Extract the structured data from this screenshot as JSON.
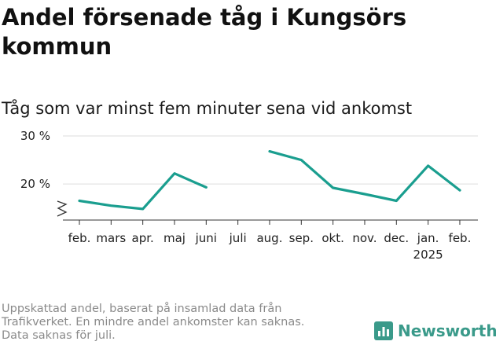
{
  "header": {
    "title": "Andel försenade tåg i Kungsörs kommun",
    "subtitle": "Tåg som var minst fem minuter sena vid ankomst"
  },
  "footer": {
    "note_line1": "Uppskattad andel, baserat på insamlad data från",
    "note_line2": "Trafikverket. En mindre andel ankomster kan saknas.",
    "note_line3": "Data saknas för juli.",
    "brand": "Newsworthy"
  },
  "colors": {
    "line": "#1a9e8f",
    "brand": "#3a9a8a",
    "grid": "#dddddd",
    "axis": "#333333"
  },
  "icons": {
    "axis_break": "zigzag-break-icon",
    "brand_logo": "bar-chart-logo-icon"
  },
  "chart_data": {
    "type": "line",
    "title": "Andel försenade tåg i Kungsörs kommun",
    "subtitle": "Tåg som var minst fem minuter sena vid ankomst",
    "categories": [
      "feb.",
      "mars",
      "apr.",
      "maj",
      "juni",
      "juli",
      "aug.",
      "sep.",
      "okt.",
      "nov.",
      "dec.",
      "jan.",
      "feb."
    ],
    "year_labels": [
      "",
      "",
      "",
      "",
      "",
      "",
      "",
      "",
      "",
      "",
      "",
      "2025",
      ""
    ],
    "series": [
      {
        "values": [
          16.5,
          15.5,
          14.8,
          22.2,
          19.3,
          null,
          26.8,
          25.0,
          19.2,
          17.9,
          16.5,
          23.8,
          18.7
        ]
      }
    ],
    "y_ticks": [
      20,
      30
    ],
    "y_tick_labels": [
      "20 %",
      "30 %"
    ],
    "ylim": [
      12.5,
      30
    ],
    "y_axis_break": true,
    "grid": true,
    "legend": "none"
  }
}
